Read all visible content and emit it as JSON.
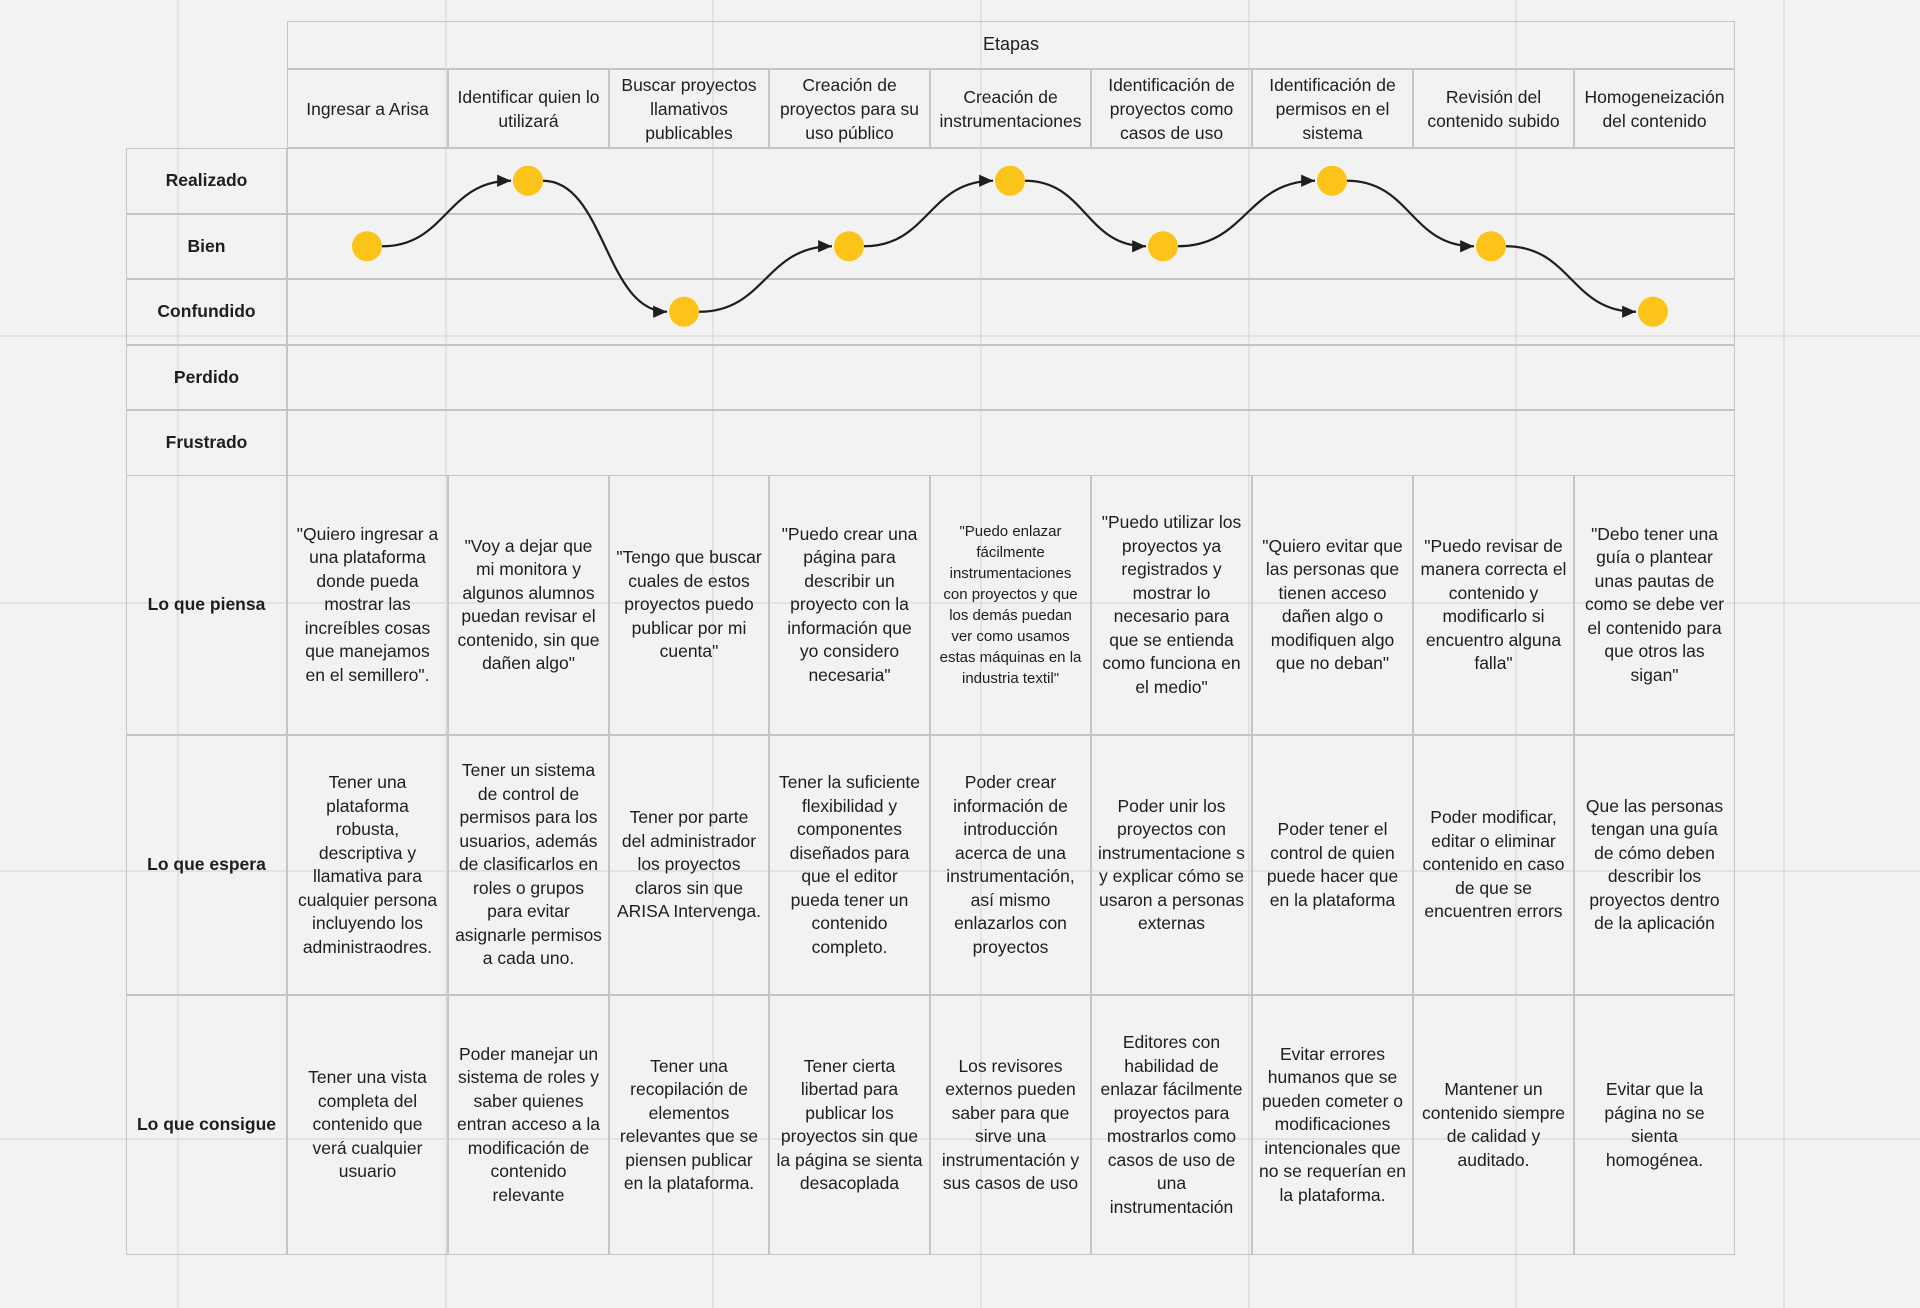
{
  "header": {
    "title": "Etapas"
  },
  "stages": [
    "Ingresar a Arisa",
    "Identificar quien lo utilizará",
    "Buscar proyectos llamativos publicables",
    "Creación de proyectos para su uso público",
    "Creación de instrumentaciones",
    "Identificación de proyectos como casos de uso",
    "Identificación de permisos en el sistema",
    "Revisión del contenido subido",
    "Homogeneización del contenido"
  ],
  "emotions": [
    "Realizado",
    "Bien",
    "Confundido",
    "Perdido",
    "Frustrado"
  ],
  "journey": {
    "stage_levels": [
      "Bien",
      "Realizado",
      "Confundido",
      "Bien",
      "Realizado",
      "Bien",
      "Realizado",
      "Bien",
      "Confundido"
    ],
    "point_color": "#fcc419",
    "line_color": "#1e1e1e"
  },
  "rows": [
    {
      "label": "Lo que piensa",
      "cells": [
        "\"Quiero ingresar a una plataforma donde pueda mostrar las increíbles cosas que manejamos en el semillero\".",
        "\"Voy a dejar que mi monitora y algunos alumnos puedan revisar el contenido, sin que dañen algo\"",
        "\"Tengo que buscar cuales de estos proyectos puedo publicar por mi cuenta\"",
        "\"Puedo crear una página para describir un proyecto con la información que yo considero necesaria\"",
        "\"Puedo enlazar fácilmente instrumentaciones con proyectos y que los demás puedan ver como usamos estas máquinas en la industria textil\"",
        "\"Puedo utilizar los proyectos ya registrados y mostrar lo necesario para que se entienda como funciona en el medio\"",
        "\"Quiero evitar que las personas que tienen acceso dañen algo o modifiquen algo que no deban\"",
        "\"Puedo revisar de manera correcta el contenido y modificarlo si encuentro alguna falla\"",
        "\"Debo tener una guía o plantear unas pautas de como se debe ver el contenido para que otros las sigan\""
      ]
    },
    {
      "label": "Lo que espera",
      "cells": [
        "Tener una plataforma robusta, descriptiva y llamativa para cualquier persona incluyendo los administraodres.",
        "Tener un sistema de control de permisos para los usuarios, además de clasificarlos en roles o grupos para evitar asignarle permisos a cada uno.",
        "Tener por parte del administrador los proyectos claros sin que ARISA Intervenga.",
        "Tener la suficiente flexibilidad y componentes diseñados para que el editor pueda tener un contenido completo.",
        "Poder crear información de introducción acerca de una instrumentación, así mismo enlazarlos con proyectos",
        "Poder unir los proyectos con instrumentacione s y explicar cómo se usaron a personas externas",
        "Poder tener el control de quien puede hacer que en la plataforma",
        "Poder modificar, editar o eliminar contenido en caso de que se encuentren errors",
        "Que las personas tengan una guía de cómo deben describir los proyectos dentro de la aplicación"
      ]
    },
    {
      "label": "Lo que consigue",
      "cells": [
        "Tener una vista completa del contenido que verá cualquier usuario",
        "Poder manejar un sistema de roles y saber quienes entran acceso a la modificación de contenido relevante",
        "Tener una recopilación de elementos relevantes que se piensen publicar en la plataforma.",
        "Tener cierta libertad para publicar los proyectos sin que la página se sienta desacoplada",
        "Los revisores externos pueden saber para que sirve una instrumentación y sus casos de uso",
        "Editores con habilidad de enlazar fácilmente proyectos para mostrarlos como casos de uso de una instrumentación",
        "Evitar errores humanos que se pueden cometer o modificaciones intencionales que no se requerían en la plataforma.",
        "Mantener un contenido siempre de calidad y auditado.",
        "Evitar que la página no se sienta homogénea."
      ]
    }
  ]
}
